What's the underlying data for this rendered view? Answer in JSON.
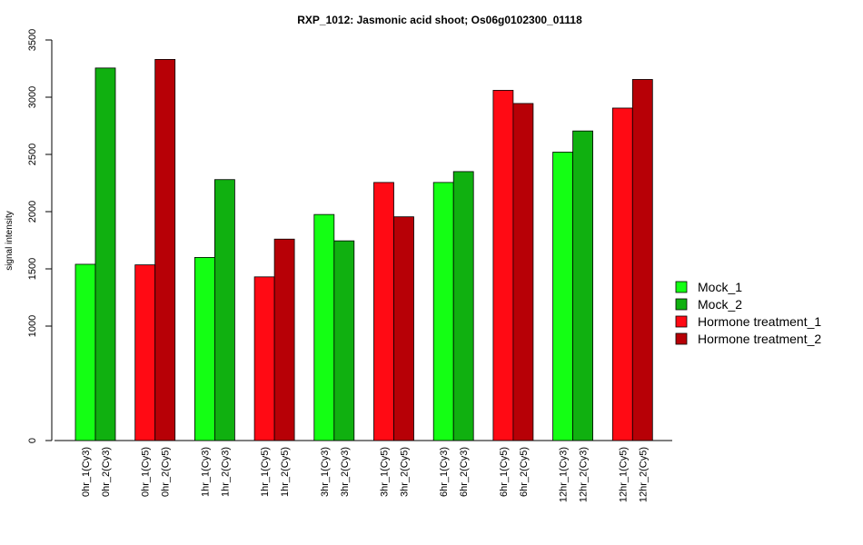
{
  "chart_data": {
    "type": "bar",
    "title": "RXP_1012: Jasmonic acid shoot; Os06g0102300_01118",
    "ylabel": "signal intensity",
    "xlabel": "",
    "y_ticks": [
      0,
      1000,
      1500,
      2000,
      2500,
      3000,
      3500
    ],
    "ylim": [
      0,
      3500
    ],
    "categories": [
      "0hr_1(Cy3)",
      "0hr_2(Cy3)",
      "0hr_1(Cy5)",
      "0hr_2(Cy5)",
      "1hr_1(Cy3)",
      "1hr_2(Cy3)",
      "1hr_1(Cy5)",
      "1hr_2(Cy5)",
      "3hr_1(Cy3)",
      "3hr_2(Cy3)",
      "3hr_1(Cy5)",
      "3hr_2(Cy5)",
      "6hr_1(Cy3)",
      "6hr_2(Cy3)",
      "6hr_1(Cy5)",
      "6hr_2(Cy5)",
      "12hr_1(Cy3)",
      "12hr_2(Cy3)",
      "12hr_1(Cy5)",
      "12hr_2(Cy5)"
    ],
    "values": [
      1540,
      3255,
      1535,
      3330,
      1600,
      2280,
      1430,
      1760,
      1975,
      1745,
      2255,
      1955,
      2255,
      2350,
      3060,
      2945,
      2520,
      2705,
      2905,
      3155
    ],
    "bar_series": [
      0,
      1,
      2,
      3,
      0,
      1,
      2,
      3,
      0,
      1,
      2,
      3,
      0,
      1,
      2,
      3,
      0,
      1,
      2,
      3
    ],
    "legend": [
      {
        "name": "Mock_1",
        "color": "#14ff14"
      },
      {
        "name": "Mock_2",
        "color": "#10b010"
      },
      {
        "name": "Hormone treatment_1",
        "color": "#ff0a14"
      },
      {
        "name": "Hormone treatment_2",
        "color": "#b70006"
      }
    ],
    "legend_position": "right",
    "grid": false
  }
}
